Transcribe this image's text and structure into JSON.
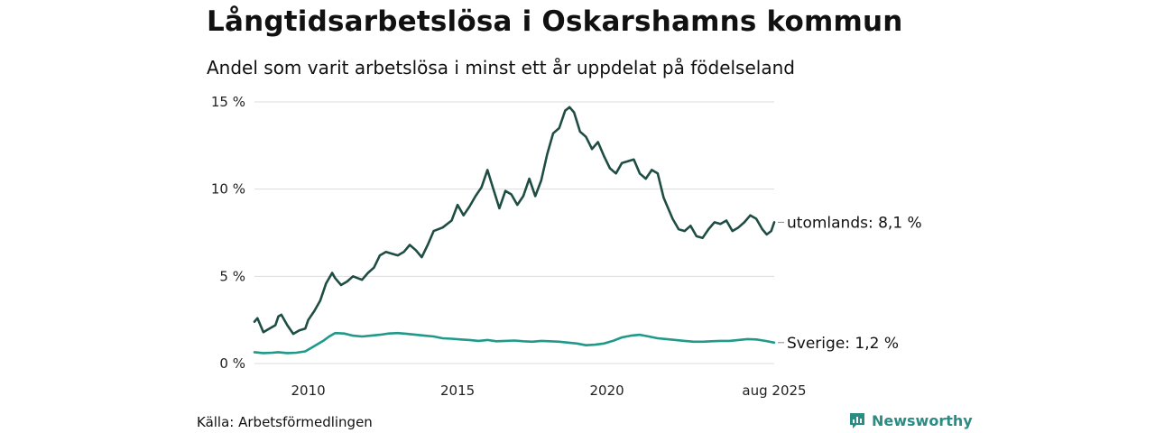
{
  "header": {
    "title": "Långtidsarbetslösa i Oskarshamns kommun",
    "subtitle": "Andel som varit arbetslösa i minst ett år uppdelat på födelseland"
  },
  "footer": {
    "source": "Källa: Arbetsförmedlingen",
    "brand": "Newsworthy"
  },
  "colors": {
    "utomlands": "#1f4d44",
    "sverige": "#1f9a8a",
    "grid": "#dddddd",
    "brand": "#2a8c82"
  },
  "chart_data": {
    "type": "line",
    "title": "Långtidsarbetslösa i Oskarshamns kommun",
    "subtitle": "Andel som varit arbetslösa i minst ett år uppdelat på födelseland",
    "xlabel": "",
    "ylabel": "",
    "xlim": [
      2008.2,
      2025.6
    ],
    "ylim": [
      0,
      15
    ],
    "grid": true,
    "legend": "inline-right",
    "y_ticks": [
      {
        "value": 0,
        "label": "0 %"
      },
      {
        "value": 5,
        "label": "5 %"
      },
      {
        "value": 10,
        "label": "10 %"
      },
      {
        "value": 15,
        "label": "15 %"
      }
    ],
    "x_ticks": [
      {
        "value": 2010,
        "label": "2010"
      },
      {
        "value": 2015,
        "label": "2015"
      },
      {
        "value": 2020,
        "label": "2020"
      },
      {
        "value": 2025.6,
        "label": "aug 2025"
      }
    ],
    "series": [
      {
        "key": "utomlands",
        "end_label": "utomlands: 8,1 %",
        "points": [
          [
            2008.2,
            2.4
          ],
          [
            2008.3,
            2.6
          ],
          [
            2008.5,
            1.8
          ],
          [
            2008.7,
            2.0
          ],
          [
            2008.9,
            2.2
          ],
          [
            2009.0,
            2.7
          ],
          [
            2009.1,
            2.8
          ],
          [
            2009.3,
            2.2
          ],
          [
            2009.5,
            1.7
          ],
          [
            2009.7,
            1.9
          ],
          [
            2009.9,
            2.0
          ],
          [
            2010.0,
            2.5
          ],
          [
            2010.2,
            3.0
          ],
          [
            2010.4,
            3.6
          ],
          [
            2010.6,
            4.6
          ],
          [
            2010.8,
            5.2
          ],
          [
            2010.9,
            4.9
          ],
          [
            2011.1,
            4.5
          ],
          [
            2011.3,
            4.7
          ],
          [
            2011.5,
            5.0
          ],
          [
            2011.8,
            4.8
          ],
          [
            2012.0,
            5.2
          ],
          [
            2012.2,
            5.5
          ],
          [
            2012.4,
            6.2
          ],
          [
            2012.6,
            6.4
          ],
          [
            2012.8,
            6.3
          ],
          [
            2013.0,
            6.2
          ],
          [
            2013.2,
            6.4
          ],
          [
            2013.4,
            6.8
          ],
          [
            2013.6,
            6.5
          ],
          [
            2013.8,
            6.1
          ],
          [
            2014.0,
            6.8
          ],
          [
            2014.2,
            7.6
          ],
          [
            2014.5,
            7.8
          ],
          [
            2014.8,
            8.2
          ],
          [
            2015.0,
            9.1
          ],
          [
            2015.2,
            8.5
          ],
          [
            2015.4,
            9.0
          ],
          [
            2015.6,
            9.6
          ],
          [
            2015.8,
            10.1
          ],
          [
            2016.0,
            11.1
          ],
          [
            2016.2,
            10.0
          ],
          [
            2016.4,
            8.9
          ],
          [
            2016.6,
            9.9
          ],
          [
            2016.8,
            9.7
          ],
          [
            2017.0,
            9.1
          ],
          [
            2017.2,
            9.6
          ],
          [
            2017.4,
            10.6
          ],
          [
            2017.6,
            9.6
          ],
          [
            2017.8,
            10.5
          ],
          [
            2018.0,
            12.0
          ],
          [
            2018.2,
            13.2
          ],
          [
            2018.4,
            13.5
          ],
          [
            2018.6,
            14.5
          ],
          [
            2018.75,
            14.7
          ],
          [
            2018.9,
            14.4
          ],
          [
            2019.1,
            13.3
          ],
          [
            2019.3,
            13.0
          ],
          [
            2019.5,
            12.3
          ],
          [
            2019.7,
            12.7
          ],
          [
            2019.9,
            11.9
          ],
          [
            2020.1,
            11.2
          ],
          [
            2020.3,
            10.9
          ],
          [
            2020.5,
            11.5
          ],
          [
            2020.7,
            11.6
          ],
          [
            2020.9,
            11.7
          ],
          [
            2021.1,
            10.9
          ],
          [
            2021.3,
            10.6
          ],
          [
            2021.5,
            11.1
          ],
          [
            2021.7,
            10.9
          ],
          [
            2021.9,
            9.5
          ],
          [
            2022.2,
            8.3
          ],
          [
            2022.4,
            7.7
          ],
          [
            2022.6,
            7.6
          ],
          [
            2022.8,
            7.9
          ],
          [
            2023.0,
            7.3
          ],
          [
            2023.2,
            7.2
          ],
          [
            2023.4,
            7.7
          ],
          [
            2023.6,
            8.1
          ],
          [
            2023.8,
            8.0
          ],
          [
            2024.0,
            8.2
          ],
          [
            2024.2,
            7.6
          ],
          [
            2024.4,
            7.8
          ],
          [
            2024.6,
            8.1
          ],
          [
            2024.8,
            8.5
          ],
          [
            2025.0,
            8.3
          ],
          [
            2025.2,
            7.7
          ],
          [
            2025.35,
            7.4
          ],
          [
            2025.5,
            7.6
          ],
          [
            2025.6,
            8.1
          ]
        ]
      },
      {
        "key": "sverige",
        "end_label": "Sverige: 1,2 %",
        "points": [
          [
            2008.2,
            0.65
          ],
          [
            2008.5,
            0.6
          ],
          [
            2008.8,
            0.62
          ],
          [
            2009.0,
            0.65
          ],
          [
            2009.3,
            0.6
          ],
          [
            2009.6,
            0.62
          ],
          [
            2009.9,
            0.7
          ],
          [
            2010.2,
            1.0
          ],
          [
            2010.5,
            1.3
          ],
          [
            2010.7,
            1.55
          ],
          [
            2010.9,
            1.75
          ],
          [
            2011.2,
            1.72
          ],
          [
            2011.5,
            1.6
          ],
          [
            2011.8,
            1.55
          ],
          [
            2012.1,
            1.6
          ],
          [
            2012.4,
            1.65
          ],
          [
            2012.7,
            1.72
          ],
          [
            2013.0,
            1.75
          ],
          [
            2013.3,
            1.7
          ],
          [
            2013.6,
            1.65
          ],
          [
            2013.9,
            1.6
          ],
          [
            2014.2,
            1.55
          ],
          [
            2014.5,
            1.45
          ],
          [
            2014.8,
            1.42
          ],
          [
            2015.1,
            1.38
          ],
          [
            2015.4,
            1.35
          ],
          [
            2015.7,
            1.3
          ],
          [
            2016.0,
            1.35
          ],
          [
            2016.3,
            1.28
          ],
          [
            2016.6,
            1.3
          ],
          [
            2016.9,
            1.32
          ],
          [
            2017.2,
            1.28
          ],
          [
            2017.5,
            1.25
          ],
          [
            2017.8,
            1.3
          ],
          [
            2018.1,
            1.28
          ],
          [
            2018.4,
            1.25
          ],
          [
            2018.7,
            1.2
          ],
          [
            2019.0,
            1.15
          ],
          [
            2019.3,
            1.05
          ],
          [
            2019.6,
            1.08
          ],
          [
            2019.9,
            1.15
          ],
          [
            2020.2,
            1.3
          ],
          [
            2020.5,
            1.5
          ],
          [
            2020.8,
            1.6
          ],
          [
            2021.1,
            1.65
          ],
          [
            2021.4,
            1.55
          ],
          [
            2021.7,
            1.45
          ],
          [
            2022.0,
            1.4
          ],
          [
            2022.3,
            1.35
          ],
          [
            2022.6,
            1.3
          ],
          [
            2022.9,
            1.25
          ],
          [
            2023.2,
            1.25
          ],
          [
            2023.5,
            1.28
          ],
          [
            2023.8,
            1.3
          ],
          [
            2024.1,
            1.3
          ],
          [
            2024.4,
            1.35
          ],
          [
            2024.7,
            1.4
          ],
          [
            2025.0,
            1.38
          ],
          [
            2025.3,
            1.3
          ],
          [
            2025.6,
            1.2
          ]
        ]
      }
    ]
  }
}
